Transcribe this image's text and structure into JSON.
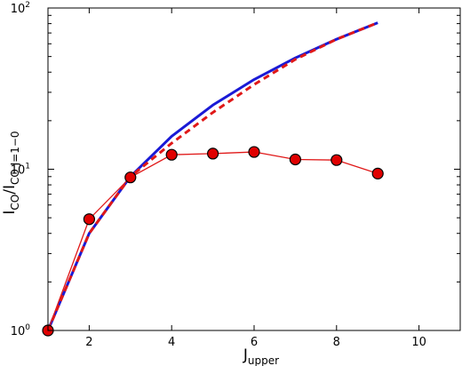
{
  "chart_data": {
    "type": "line",
    "title": "",
    "xlabel": {
      "base": "J",
      "sub": "upper"
    },
    "ylabel": {
      "base": "I",
      "sub1": "CO",
      "mid": "/I",
      "sub2": "CO J=1−0"
    },
    "xlim": [
      1,
      11
    ],
    "ylim": [
      1,
      100
    ],
    "yscale": "log",
    "grid": false,
    "legend": "none",
    "xticks": [
      2,
      4,
      6,
      8,
      10
    ],
    "yticks": [
      {
        "value": 1,
        "base": "10",
        "exp": "0"
      },
      {
        "value": 10,
        "base": "10",
        "exp": "1"
      },
      {
        "value": 100,
        "base": "10",
        "exp": "2"
      }
    ],
    "series": [
      {
        "style": "solid",
        "color": "#1a1ad6",
        "x": [
          1,
          2,
          3,
          4,
          5,
          6,
          7,
          8,
          9
        ],
        "y": [
          1.0,
          4.0,
          9.0,
          16.0,
          25.0,
          36.0,
          49.0,
          64.0,
          81.0
        ]
      },
      {
        "style": "dashed",
        "color": "#e01818",
        "x": [
          1,
          2,
          3,
          4,
          5,
          6,
          7,
          8,
          9
        ],
        "y": [
          1.0,
          4.0,
          9.0,
          14.5,
          22.5,
          33.5,
          48.0,
          64.0,
          81.0
        ]
      },
      {
        "style": "markers",
        "color": "#e01818",
        "marker_fill": "#e00000",
        "x": [
          1,
          2,
          3,
          4,
          5,
          6,
          7,
          8,
          9
        ],
        "y": [
          1.0,
          4.9,
          8.9,
          12.3,
          12.5,
          12.8,
          11.5,
          11.4,
          9.4
        ]
      }
    ]
  }
}
